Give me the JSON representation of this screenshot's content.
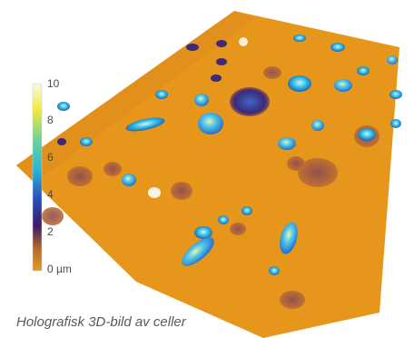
{
  "colorbar": {
    "ticks": [
      "10",
      "8",
      "6",
      "4",
      "2",
      "0 µm"
    ],
    "colors": [
      "#f7f7e6",
      "#f1ea3a",
      "#6cd29a",
      "#28b7d8",
      "#2a4bb8",
      "#3a1a6a",
      "#b36b28",
      "#e49a28"
    ]
  },
  "caption": "Holografisk 3D-bild av celler",
  "surface_color": "#e7961c"
}
